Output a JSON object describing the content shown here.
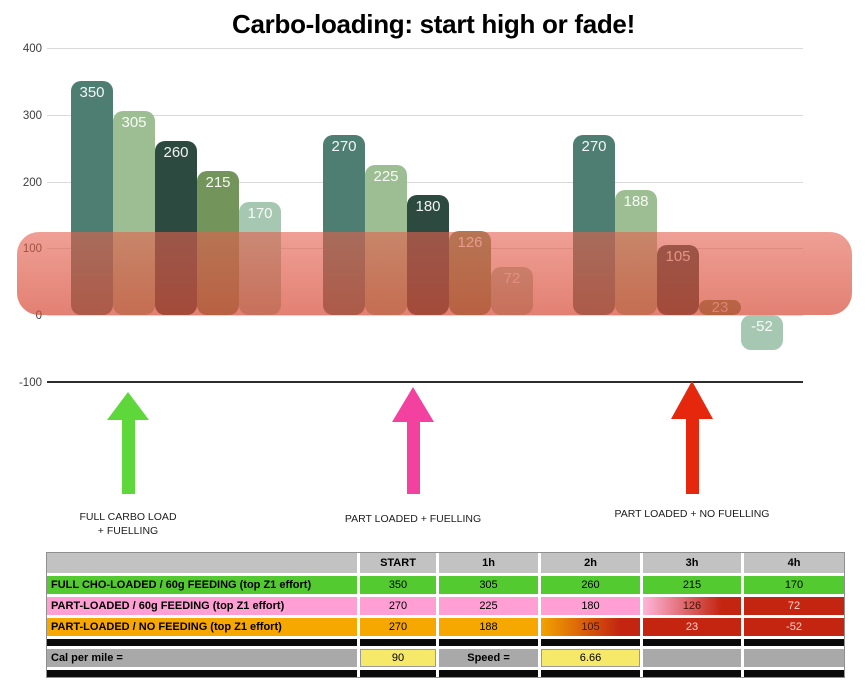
{
  "chart_data": {
    "type": "bar",
    "title": "Carbo-loading: start high or fade!",
    "categories": [
      "START",
      "1h",
      "2h",
      "3h",
      "4h"
    ],
    "series": [
      {
        "id": "full-load",
        "name": "FULL CHO-LOADED / 60g FEEDING (top Z1 effort)",
        "values": [
          350,
          305,
          260,
          215,
          170
        ]
      },
      {
        "id": "part-load-feeding",
        "name": "PART-LOADED / 60g FEEDING (top Z1 effort)",
        "values": [
          270,
          225,
          180,
          126,
          72
        ]
      },
      {
        "id": "part-load-no-feeding",
        "name": "PART-LOADED / NO FEEDING (top Z1 effort)",
        "values": [
          270,
          188,
          105,
          23,
          -52
        ]
      }
    ],
    "yticks": [
      400,
      300,
      200,
      100,
      0,
      -100
    ],
    "ylim": [
      -100,
      400
    ],
    "grid": true,
    "legend": "none",
    "band": {
      "from": 0,
      "to": 125,
      "color": "#e2604e"
    },
    "bar_colors": [
      "#4e7e71",
      "#9dbe92",
      "#2d4a41",
      "#73955c",
      "#a6c7b1"
    ]
  },
  "annotations": [
    {
      "id": "full-carbo-load",
      "label": "FULL CARBO LOAD\n+ FUELLING",
      "arrow_color": "#5ed73a"
    },
    {
      "id": "part-loaded-fuelling",
      "label": "PART LOADED + FUELLING",
      "arrow_color": "#f2419e"
    },
    {
      "id": "part-loaded-no-fuelling",
      "label": "PART LOADED + NO FUELLING",
      "arrow_color": "#e5270e"
    }
  ],
  "table": {
    "header": [
      "",
      "START",
      "1h",
      "2h",
      "3h",
      "4h"
    ],
    "rows": [
      {
        "label": "FULL CHO-LOADED / 60g FEEDING (top Z1 effort)",
        "values": [
          "350",
          "305",
          "260",
          "215",
          "170"
        ],
        "styles": [
          "green",
          "green",
          "green",
          "green",
          "green",
          "green"
        ]
      },
      {
        "label": "PART-LOADED / 60g FEEDING (top Z1 effort)",
        "values": [
          "270",
          "225",
          "180",
          "126",
          "72"
        ],
        "styles": [
          "pink",
          "pink",
          "pink",
          "pink",
          "pink2red",
          "red"
        ]
      },
      {
        "label": "PART-LOADED / NO FEEDING (top Z1 effort)",
        "values": [
          "270",
          "188",
          "105",
          "23",
          "-52"
        ],
        "styles": [
          "orange",
          "orange",
          "orange",
          "orange2red",
          "red",
          "red"
        ]
      }
    ],
    "footer": {
      "cells": [
        "Cal per mile =",
        "90",
        "Speed =",
        "6.66",
        "",
        ""
      ],
      "styles": [
        "gray",
        "yellow",
        "gray",
        "yellow",
        "gray",
        "gray"
      ]
    }
  },
  "colors": {
    "table_green": "#53cb30",
    "table_pink": "#ff9fd4",
    "table_orange": "#f7a800",
    "table_red": "#c32511",
    "table_yellow": "#f6e96a",
    "header_gray": "#c2c2c2",
    "footer_gray": "#a9a9a9",
    "separator_black": "#0a0a0a",
    "grad_pink_from": "#ffb5da",
    "grad_orange_from": "#f2a300",
    "red_cell_text": "#ffd6cd",
    "grad_cell_text": "#46150a"
  }
}
